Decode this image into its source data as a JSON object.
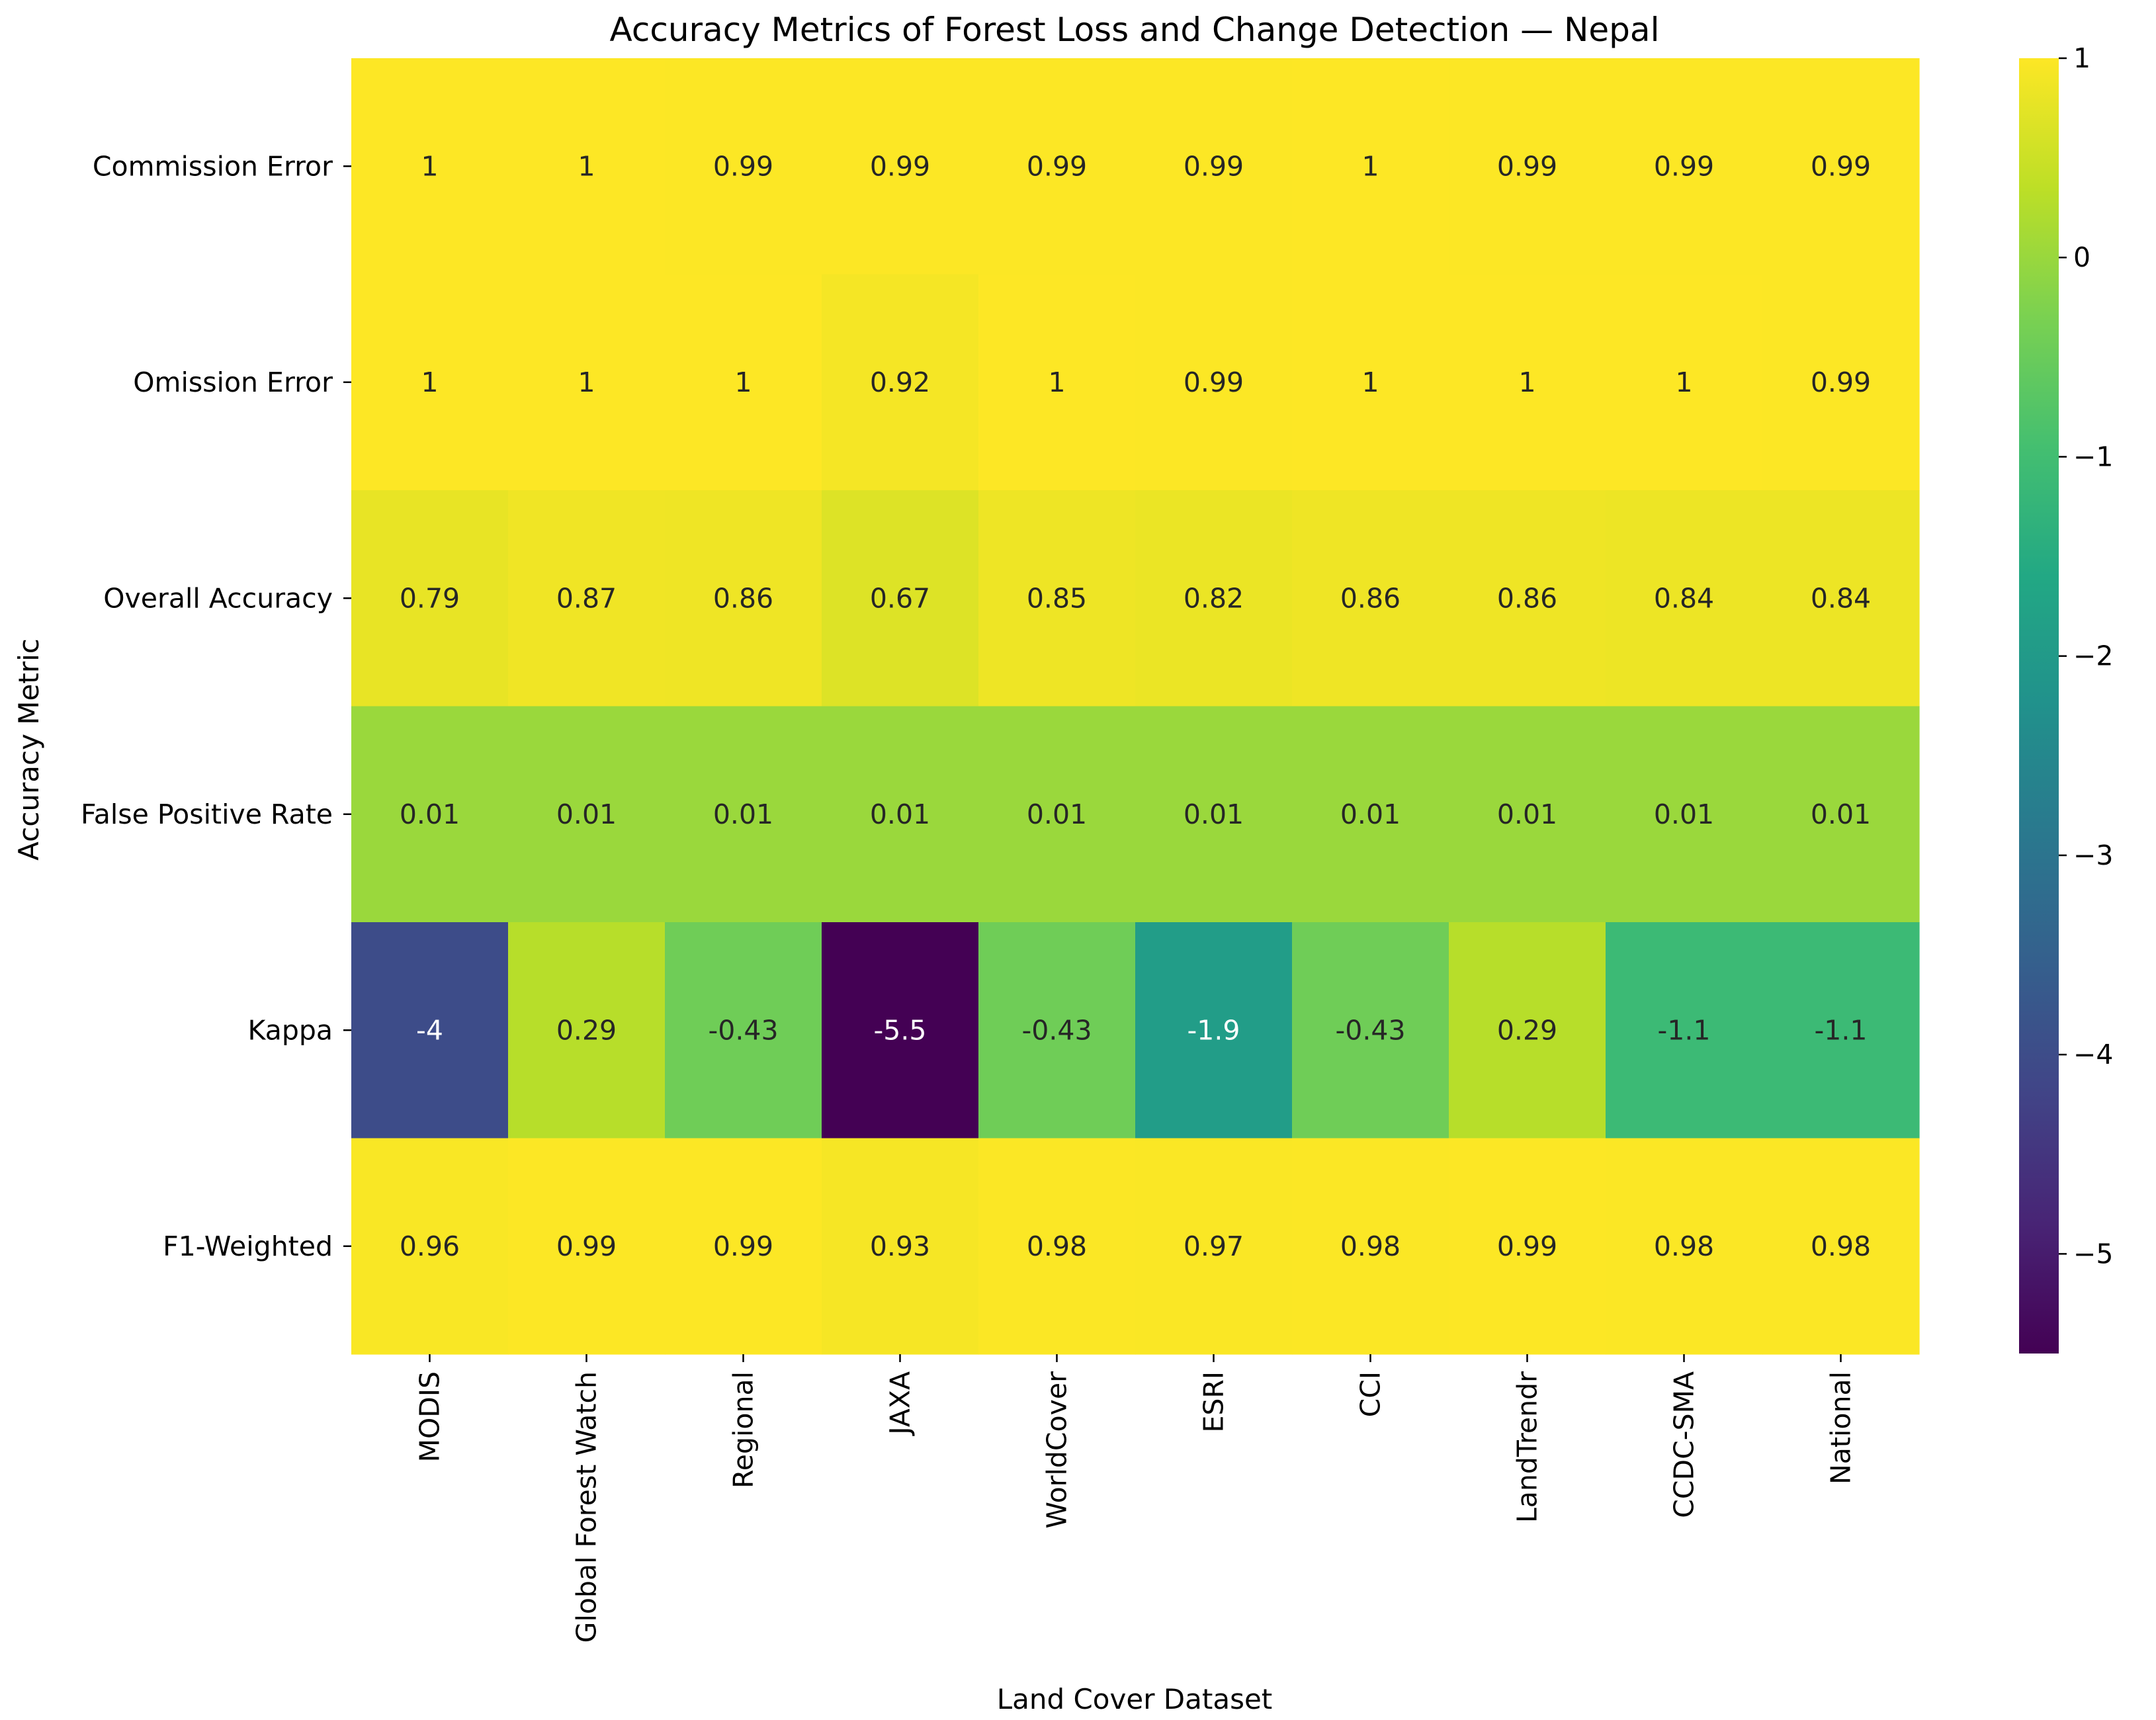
{
  "chart_data": {
    "type": "heatmap",
    "title": "Accuracy Metrics of Forest Loss and Change Detection — Nepal",
    "xlabel": "Land Cover Dataset",
    "ylabel": "Accuracy Metric",
    "x_categories": [
      "MODIS",
      "Global Forest Watch",
      "Regional",
      "JAXA",
      "WorldCover",
      "ESRI",
      "CCI",
      "LandTrendr",
      "CCDC-SMA",
      "National"
    ],
    "y_categories": [
      "Commission Error",
      "Omission Error",
      "Overall Accuracy",
      "False Positive Rate",
      "Kappa",
      "F1-Weighted"
    ],
    "values": [
      [
        1,
        1,
        0.99,
        0.99,
        0.99,
        0.99,
        1,
        0.99,
        0.99,
        0.99
      ],
      [
        1,
        1,
        1,
        0.92,
        1,
        0.99,
        1,
        1,
        1,
        0.99
      ],
      [
        0.79,
        0.87,
        0.86,
        0.67,
        0.85,
        0.82,
        0.86,
        0.86,
        0.84,
        0.84
      ],
      [
        0.01,
        0.01,
        0.01,
        0.01,
        0.01,
        0.01,
        0.01,
        0.01,
        0.01,
        0.01
      ],
      [
        -4,
        0.29,
        -0.43,
        -5.5,
        -0.43,
        -1.9,
        -0.43,
        0.29,
        -1.1,
        -1.1
      ],
      [
        0.96,
        0.99,
        0.99,
        0.93,
        0.98,
        0.97,
        0.98,
        0.99,
        0.98,
        0.98
      ]
    ],
    "value_labels": [
      [
        "1",
        "1",
        "0.99",
        "0.99",
        "0.99",
        "0.99",
        "1",
        "0.99",
        "0.99",
        "0.99"
      ],
      [
        "1",
        "1",
        "1",
        "0.92",
        "1",
        "0.99",
        "1",
        "1",
        "1",
        "0.99"
      ],
      [
        "0.79",
        "0.87",
        "0.86",
        "0.67",
        "0.85",
        "0.82",
        "0.86",
        "0.86",
        "0.84",
        "0.84"
      ],
      [
        "0.01",
        "0.01",
        "0.01",
        "0.01",
        "0.01",
        "0.01",
        "0.01",
        "0.01",
        "0.01",
        "0.01"
      ],
      [
        "-4",
        "0.29",
        "-0.43",
        "-5.5",
        "-0.43",
        "-1.9",
        "-0.43",
        "0.29",
        "-1.1",
        "-1.1"
      ],
      [
        "0.96",
        "0.99",
        "0.99",
        "0.93",
        "0.98",
        "0.97",
        "0.98",
        "0.99",
        "0.98",
        "0.98"
      ]
    ],
    "colormap": "viridis",
    "color_range": [
      -5.5,
      1
    ],
    "colorbar": {
      "ticks": [
        1,
        0,
        -1,
        -2,
        -3,
        -4,
        -5
      ],
      "tick_labels": [
        "1",
        "0",
        "−1",
        "−2",
        "−3",
        "−4",
        "−5"
      ]
    }
  }
}
